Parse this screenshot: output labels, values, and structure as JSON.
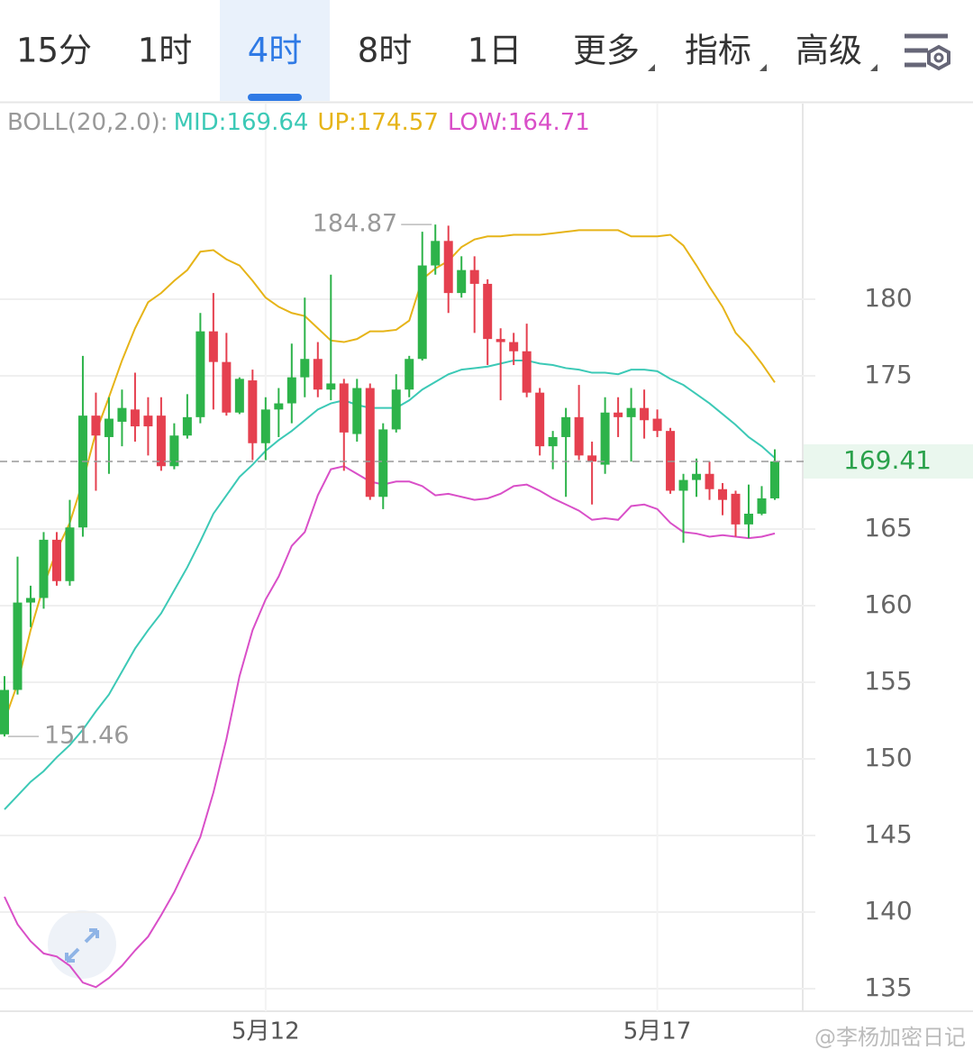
{
  "tabs": [
    "15分",
    "1时",
    "4时",
    "8时",
    "1日",
    "更多",
    "指标",
    "高级"
  ],
  "selected_tab": 2,
  "chart_data": {
    "type": "candlestick",
    "indicator": "BOLL(20,2.0):",
    "categories": [
      null,
      null,
      null,
      null,
      null,
      null,
      null,
      null,
      null,
      null,
      null,
      null,
      null,
      null,
      null,
      null,
      null,
      null,
      null,
      null,
      "5月12",
      null,
      null,
      null,
      null,
      null,
      null,
      null,
      null,
      null,
      null,
      null,
      null,
      null,
      null,
      null,
      null,
      null,
      null,
      null,
      null,
      null,
      null,
      null,
      null,
      null,
      null,
      null,
      null,
      null,
      "5月17",
      null,
      null,
      null,
      null,
      null,
      null,
      null,
      null,
      null
    ],
    "candles": {
      "up_color": "#2db34a",
      "down_color": "#e5404f",
      "open": [
        151.6,
        154.5,
        160.2,
        160.5,
        164.3,
        161.6,
        165.1,
        172.4,
        171.0,
        172.0,
        172.8,
        172.4,
        172.4,
        169.1,
        171.1,
        172.3,
        177.9,
        175.9,
        172.6,
        174.7,
        170.6,
        172.8,
        173.2,
        174.9,
        176.1,
        174.1,
        174.5,
        171.2,
        174.2,
        167.1,
        171.5,
        174.1,
        176.1,
        182.2,
        183.8,
        180.4,
        181.9,
        181.0,
        177.4,
        177.2,
        176.6,
        173.9,
        170.4,
        171.0,
        172.3,
        169.8,
        169.2,
        172.6,
        172.3,
        172.9,
        172.2,
        171.4,
        167.5,
        168.2,
        168.6,
        167.6,
        167.3,
        165.3,
        166.0,
        167.0
      ],
      "high": [
        155.4,
        163.2,
        161.3,
        164.8,
        164.8,
        166.9,
        176.3,
        173.9,
        173.6,
        174.1,
        175.2,
        173.6,
        173.6,
        171.9,
        173.8,
        179.1,
        180.4,
        177.8,
        174.9,
        175.4,
        173.6,
        174.2,
        177.1,
        180.1,
        177.2,
        181.6,
        174.8,
        174.8,
        174.5,
        171.9,
        175.1,
        176.3,
        184.4,
        184.87,
        184.8,
        182.8,
        182.8,
        181.3,
        178.1,
        177.8,
        178.4,
        174.2,
        171.4,
        172.9,
        174.4,
        170.7,
        173.6,
        173.6,
        174.2,
        174.1,
        172.8,
        171.6,
        168.6,
        169.6,
        169.4,
        168.0,
        167.5,
        167.9,
        167.8,
        170.2
      ],
      "low": [
        151.46,
        154.2,
        158.6,
        159.8,
        161.3,
        161.3,
        164.5,
        167.5,
        168.6,
        170.4,
        170.7,
        169.8,
        168.8,
        168.9,
        170.9,
        171.9,
        172.8,
        172.4,
        172.5,
        169.5,
        169.5,
        171.0,
        171.9,
        173.6,
        173.6,
        173.4,
        168.8,
        170.7,
        166.9,
        166.3,
        171.3,
        173.6,
        176.0,
        181.6,
        179.1,
        180.1,
        177.8,
        175.7,
        173.4,
        175.7,
        173.6,
        169.8,
        168.9,
        167.1,
        169.5,
        166.6,
        168.6,
        171.0,
        169.4,
        170.9,
        171.0,
        167.3,
        164.1,
        167.1,
        166.9,
        165.9,
        164.5,
        164.4,
        165.9,
        166.9
      ],
      "close": [
        154.5,
        160.2,
        160.5,
        164.3,
        161.6,
        165.1,
        172.4,
        171.1,
        172.2,
        172.9,
        171.7,
        171.7,
        169.1,
        171.1,
        172.3,
        177.9,
        175.9,
        172.6,
        174.8,
        170.6,
        172.8,
        173.2,
        174.9,
        176.1,
        174.1,
        174.5,
        171.3,
        174.2,
        167.1,
        171.5,
        174.1,
        176.1,
        182.2,
        183.8,
        180.4,
        181.9,
        181.0,
        177.4,
        177.2,
        176.6,
        173.9,
        170.4,
        171.0,
        172.3,
        169.8,
        169.4,
        172.6,
        172.3,
        172.9,
        172.1,
        171.4,
        167.5,
        168.2,
        168.6,
        167.6,
        166.9,
        165.3,
        166.0,
        167.0,
        169.41
      ]
    },
    "series": [
      {
        "name": "MID:169.64",
        "color": "#3cc9b6",
        "values": [
          146.7,
          147.6,
          148.5,
          149.2,
          150.1,
          150.9,
          151.9,
          153.1,
          154.2,
          155.7,
          157.2,
          158.4,
          159.5,
          161.0,
          162.5,
          164.2,
          166.0,
          167.2,
          168.4,
          169.2,
          170.1,
          170.8,
          171.4,
          172.1,
          172.8,
          173.2,
          173.4,
          173.1,
          172.9,
          172.9,
          172.9,
          173.4,
          174.1,
          174.6,
          175.1,
          175.4,
          175.5,
          175.6,
          175.8,
          176.0,
          176.0,
          175.8,
          175.7,
          175.5,
          175.4,
          175.2,
          175.2,
          175.1,
          175.4,
          175.4,
          175.3,
          174.8,
          174.4,
          173.8,
          173.2,
          172.5,
          171.8,
          171.0,
          170.4,
          169.64
        ]
      },
      {
        "name": "UP:174.57",
        "color": "#e6b418",
        "values": [
          152.5,
          154.9,
          158.4,
          161.3,
          163.6,
          165.4,
          168.1,
          171.3,
          173.6,
          176.0,
          178.1,
          179.8,
          180.4,
          181.2,
          181.9,
          183.1,
          183.2,
          182.6,
          182.2,
          181.2,
          180.1,
          179.5,
          179.1,
          178.9,
          178.1,
          177.3,
          177.2,
          177.4,
          177.9,
          177.9,
          178.0,
          178.6,
          181.3,
          182.0,
          182.5,
          183.4,
          183.9,
          184.1,
          184.1,
          184.2,
          184.2,
          184.2,
          184.3,
          184.4,
          184.5,
          184.5,
          184.5,
          184.5,
          184.1,
          184.1,
          184.1,
          184.2,
          183.5,
          182.2,
          180.8,
          179.5,
          177.8,
          176.9,
          175.8,
          174.57
        ]
      },
      {
        "name": "LOW:164.71",
        "color": "#d94fc8",
        "values": [
          141.0,
          139.2,
          138.1,
          137.3,
          137.1,
          136.5,
          135.4,
          135.1,
          135.7,
          136.5,
          137.5,
          138.4,
          139.8,
          141.3,
          143.1,
          144.9,
          147.8,
          151.3,
          155.4,
          158.4,
          160.4,
          161.9,
          163.9,
          164.8,
          167.2,
          168.9,
          169.1,
          168.6,
          168.1,
          167.9,
          168.1,
          168.1,
          167.8,
          167.2,
          167.3,
          167.1,
          166.9,
          167.0,
          167.3,
          167.8,
          167.9,
          167.5,
          167.0,
          166.6,
          166.2,
          165.6,
          165.7,
          165.6,
          166.5,
          166.6,
          166.3,
          165.4,
          164.8,
          164.7,
          164.5,
          164.6,
          164.5,
          164.4,
          164.5,
          164.71
        ]
      }
    ],
    "ylim": [
      133.53,
      192.76
    ],
    "yticks": [
      135,
      140,
      145,
      150,
      155,
      160,
      165,
      175,
      180
    ],
    "grid": true
  },
  "watermark": "@李杨加密日记"
}
